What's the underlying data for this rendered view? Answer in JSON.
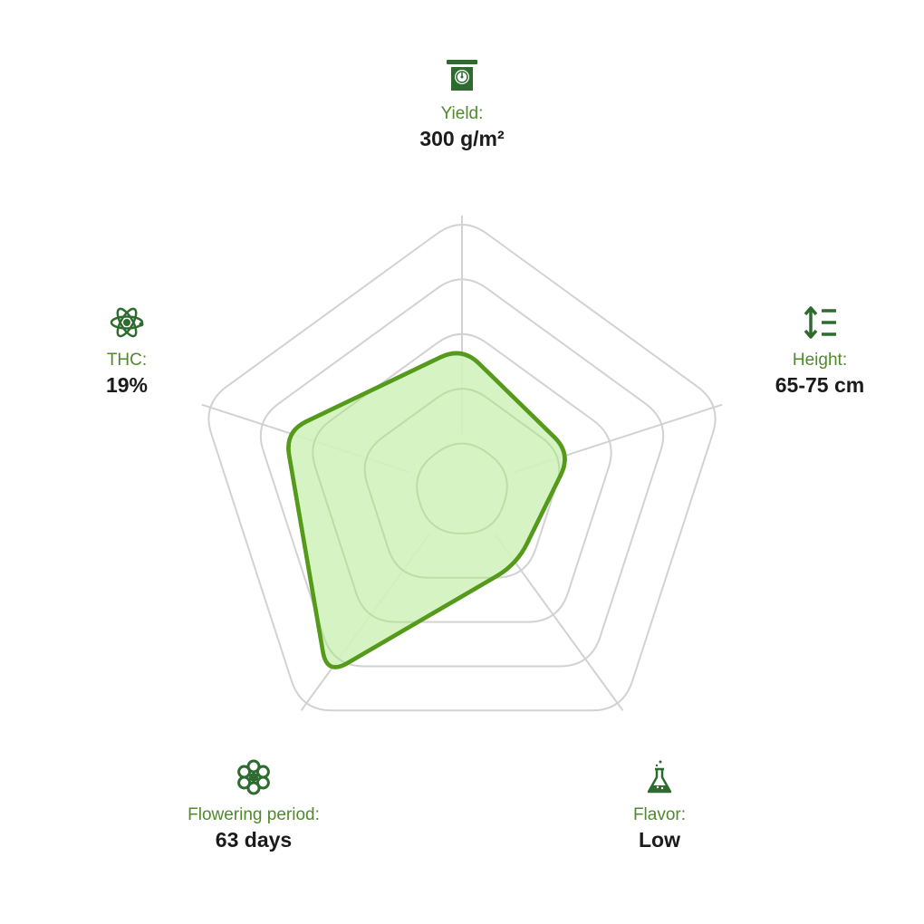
{
  "colors": {
    "grid": "#d2d2d2",
    "fill": "#d2f3bd",
    "stroke": "#559a1b",
    "label": "#4f8a2c",
    "value": "#1b1b1b",
    "icon": "#2e6b2e"
  },
  "chart_data": {
    "type": "radar",
    "levels": 5,
    "max": 5,
    "axes": [
      {
        "key": "yield",
        "label": "Yield:",
        "value_text": "300 g/m²",
        "icon": "scale-icon"
      },
      {
        "key": "height",
        "label": "Height:",
        "value_text": "65-75 cm",
        "icon": "height-icon"
      },
      {
        "key": "flavor",
        "label": "Flavor:",
        "value_text": "Low",
        "icon": "flask-icon"
      },
      {
        "key": "flowering",
        "label": "Flowering period:",
        "value_text": "63 days",
        "icon": "flower-icon"
      },
      {
        "key": "thc",
        "label": "THC:",
        "value_text": "19%",
        "icon": "atom-icon"
      }
    ],
    "values": [
      2.6,
      2.1,
      1.7,
      4.2,
      3.4
    ]
  }
}
